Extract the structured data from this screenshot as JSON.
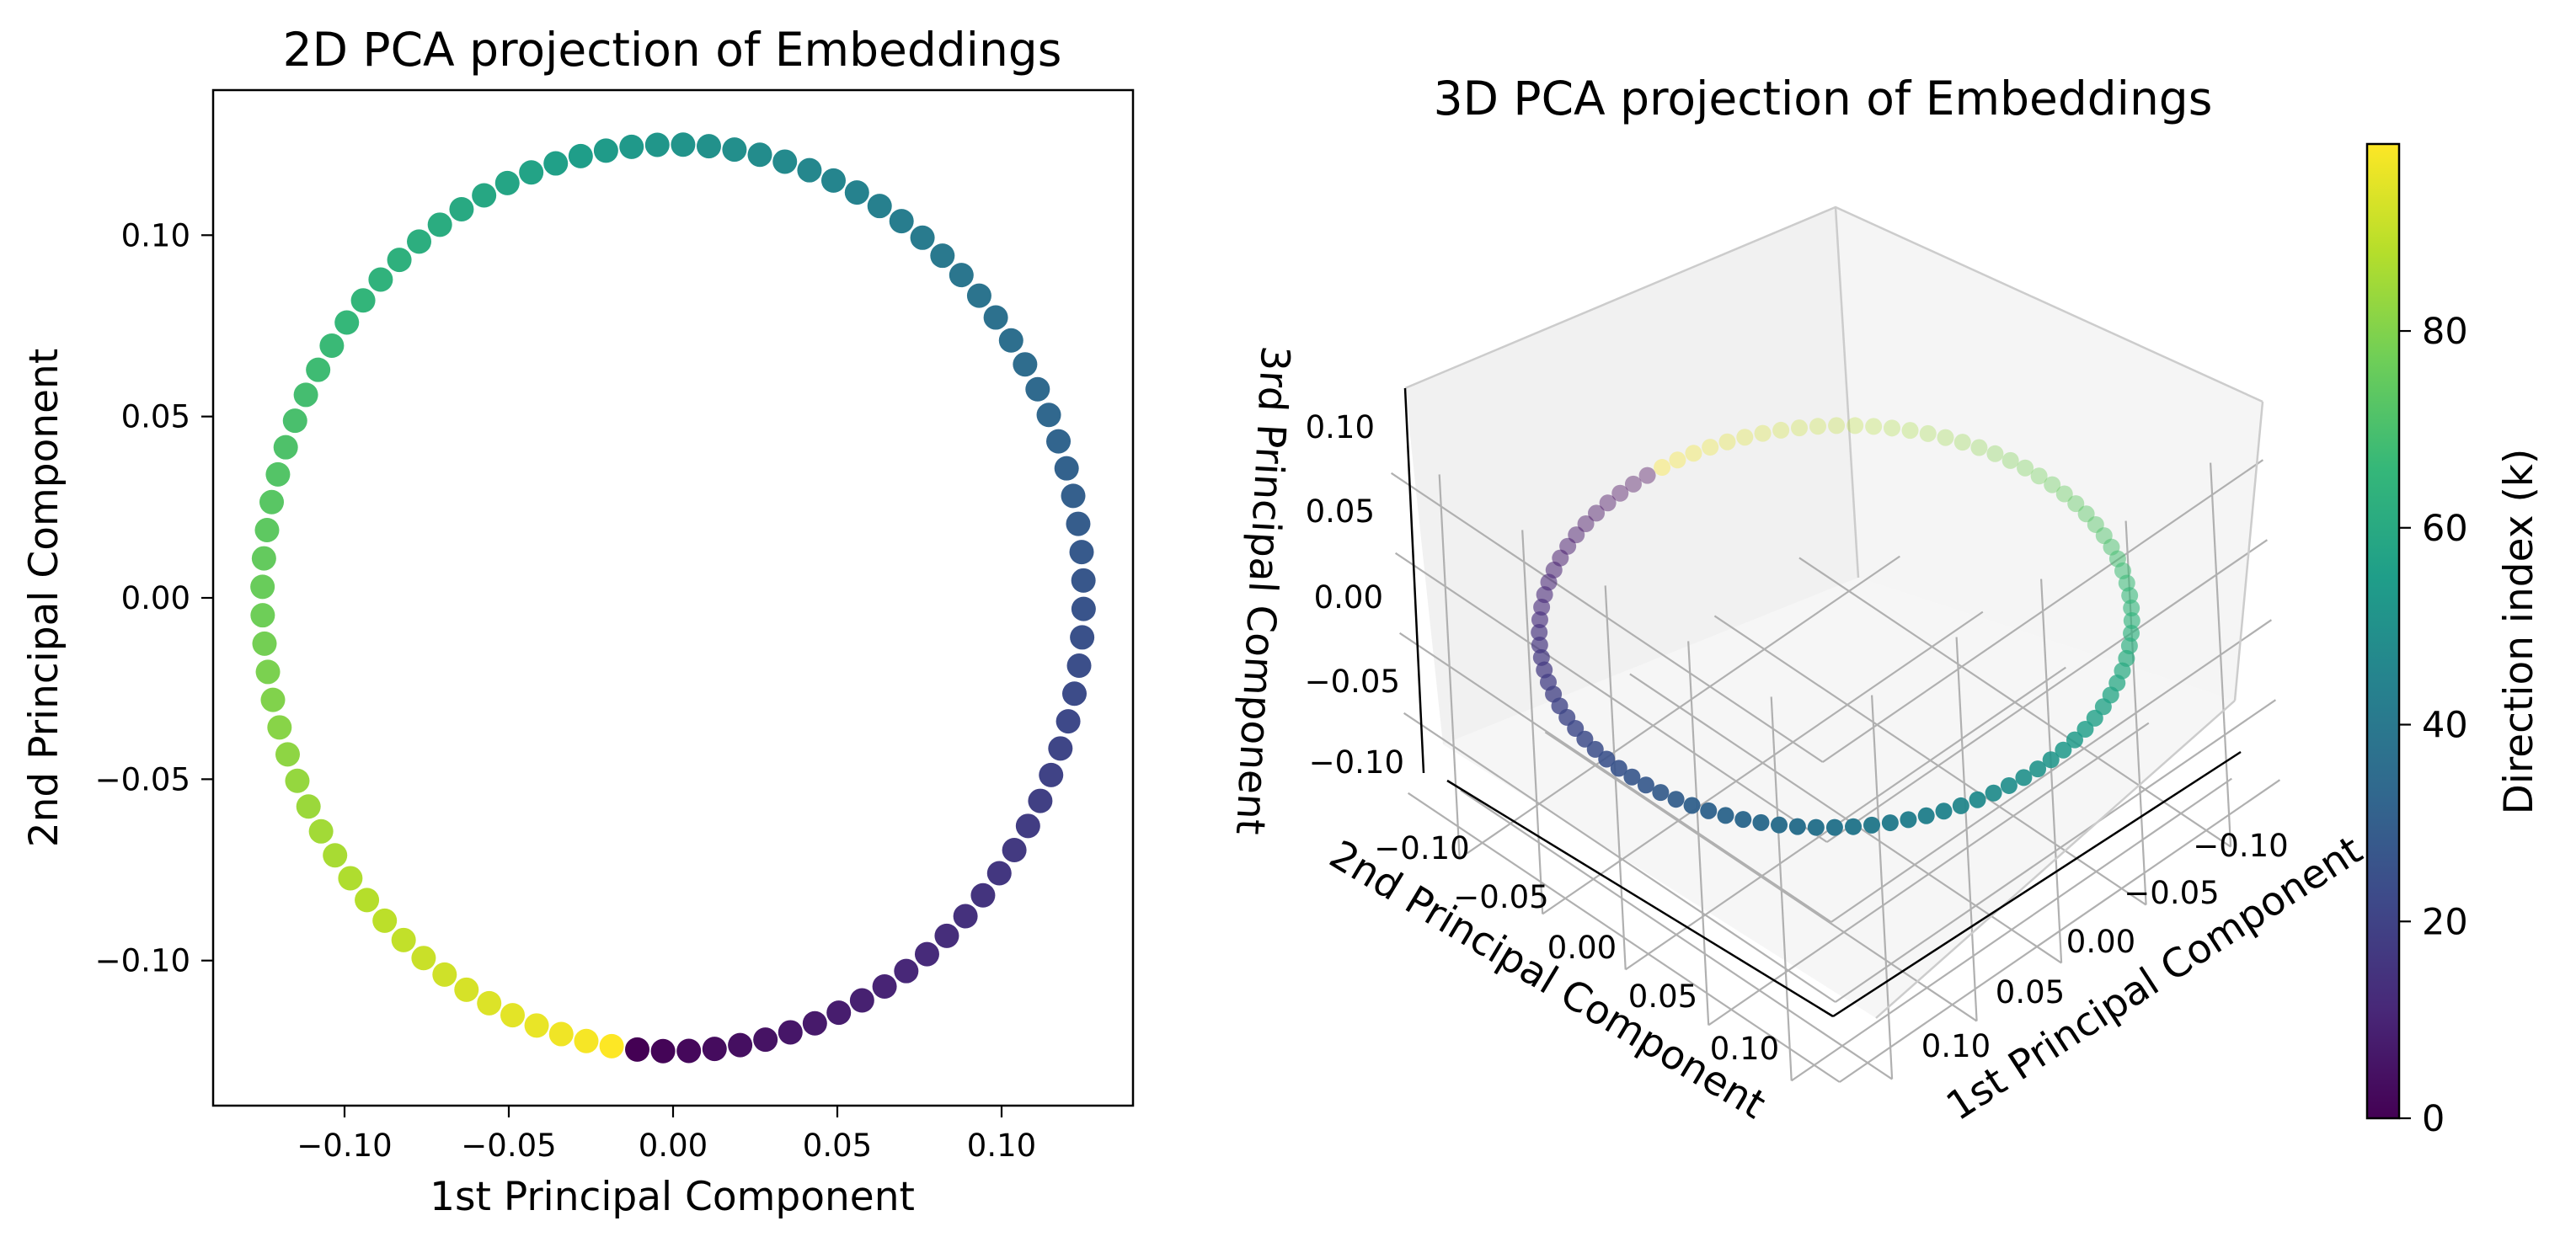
{
  "chart_data": [
    {
      "type": "scatter",
      "title": "2D PCA projection of Embeddings",
      "xlabel": "1st Principal Component",
      "ylabel": "2nd Principal Component",
      "xlim": [
        -0.14,
        0.14
      ],
      "ylim": [
        -0.14,
        0.14
      ],
      "xticks": [
        -0.1,
        -0.05,
        0.0,
        0.05,
        0.1
      ],
      "yticks": [
        -0.1,
        -0.05,
        0.0,
        0.05,
        0.1
      ],
      "xtick_labels": [
        "−0.10",
        "−0.05",
        "0.00",
        "0.05",
        "0.10"
      ],
      "ytick_labels": [
        "−0.10",
        "−0.05",
        "0.00",
        "0.05",
        "0.10"
      ],
      "series": [
        {
          "name": "embeddings",
          "n_points": 100,
          "shape": "circle",
          "center": [
            0.0,
            0.0
          ],
          "radius": 0.125,
          "start_angle_deg": -95,
          "direction": "counterclockwise",
          "color_by": "Direction index (k)"
        }
      ]
    },
    {
      "type": "scatter",
      "title": "3D PCA projection of Embeddings",
      "xlabel": "1st Principal Component",
      "ylabel": "2nd Principal Component",
      "zlabel": "3rd Principal Component",
      "xticks": [
        -0.1,
        -0.05,
        0.0,
        0.05,
        0.1
      ],
      "yticks": [
        -0.1,
        -0.05,
        0.0,
        0.05,
        0.1
      ],
      "zticks": [
        -0.1,
        -0.05,
        0.0,
        0.05,
        0.1
      ],
      "xtick_labels": [
        "−0.10",
        "−0.05",
        "0.00",
        "0.05",
        "0.10"
      ],
      "ytick_labels": [
        "−0.10",
        "−0.05",
        "0.00",
        "0.05",
        "0.10"
      ],
      "ztick_labels": [
        "−0.10",
        "−0.05",
        "0.00",
        "0.05",
        "0.10"
      ],
      "series": [
        {
          "name": "embeddings",
          "n_points": 100,
          "shape": "ring",
          "radius": 0.125,
          "z_value": 0.0,
          "start_angle_deg": -95,
          "direction": "counterclockwise",
          "color_by": "Direction index (k)"
        }
      ]
    },
    {
      "type": "colorbar",
      "label": "Direction index (k)",
      "colormap": "viridis",
      "range": [
        0,
        99
      ],
      "ticks": [
        0,
        20,
        40,
        60,
        80
      ],
      "tick_labels": [
        "0",
        "20",
        "40",
        "60",
        "80"
      ],
      "colormap_stops": [
        "#440154",
        "#482878",
        "#3e4989",
        "#31688e",
        "#26828e",
        "#1f9e89",
        "#35b779",
        "#6ece58",
        "#b5de2b",
        "#fde725"
      ]
    }
  ]
}
